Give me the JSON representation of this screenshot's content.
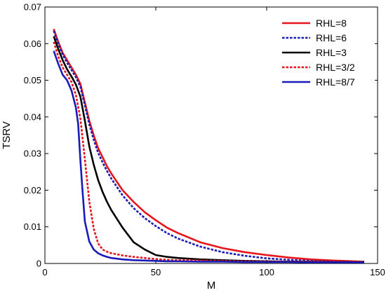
{
  "chart_data": {
    "type": "line",
    "xlabel": "M",
    "ylabel": "TSRV",
    "xlim": [
      0,
      150
    ],
    "ylim": [
      0,
      0.07
    ],
    "xticks": [
      0,
      50,
      100,
      150
    ],
    "yticks": [
      0,
      0.01,
      0.02,
      0.03,
      0.04,
      0.05,
      0.06,
      0.07
    ],
    "xtick_labels": [
      "0",
      "50",
      "100",
      "150"
    ],
    "ytick_labels": [
      "0",
      "0.01",
      "0.02",
      "0.03",
      "0.04",
      "0.05",
      "0.06",
      "0.07"
    ],
    "grid": false,
    "legend_position": "top-right",
    "series": [
      {
        "name": "RHL=8",
        "color": "#e8141b",
        "dash": "solid",
        "x": [
          4,
          6,
          8,
          10,
          12,
          14,
          16,
          18,
          20,
          22,
          24,
          26,
          28,
          30,
          35,
          40,
          45,
          50,
          55,
          60,
          70,
          80,
          90,
          100,
          110,
          120,
          130,
          144
        ],
        "y": [
          0.064,
          0.0605,
          0.0575,
          0.0555,
          0.0535,
          0.0515,
          0.049,
          0.044,
          0.039,
          0.035,
          0.0315,
          0.029,
          0.0265,
          0.0245,
          0.02,
          0.0168,
          0.014,
          0.0118,
          0.0098,
          0.0083,
          0.0058,
          0.0042,
          0.0031,
          0.0023,
          0.0016,
          0.0011,
          0.0008,
          0.0005
        ]
      },
      {
        "name": "RHL=6",
        "color": "#1a1ab8",
        "dash": "dotted",
        "x": [
          4,
          6,
          8,
          10,
          12,
          14,
          16,
          18,
          20,
          22,
          24,
          26,
          28,
          30,
          35,
          40,
          45,
          50,
          55,
          60,
          70,
          80,
          90,
          100,
          110,
          120,
          130,
          144
        ],
        "y": [
          0.0635,
          0.06,
          0.057,
          0.0548,
          0.0528,
          0.0508,
          0.0482,
          0.0432,
          0.038,
          0.0338,
          0.0302,
          0.0276,
          0.0252,
          0.0231,
          0.0186,
          0.0151,
          0.0124,
          0.0102,
          0.0083,
          0.0068,
          0.0046,
          0.0031,
          0.0021,
          0.0014,
          0.001,
          0.0007,
          0.0005,
          0.0004
        ]
      },
      {
        "name": "RHL=3",
        "color": "#000000",
        "dash": "solid",
        "x": [
          4,
          6,
          8,
          10,
          12,
          14,
          16,
          18,
          20,
          22,
          24,
          26,
          28,
          30,
          35,
          40,
          45,
          50,
          55,
          60,
          70,
          80,
          90,
          100,
          110,
          120,
          130,
          144
        ],
        "y": [
          0.062,
          0.0585,
          0.0555,
          0.053,
          0.051,
          0.0488,
          0.0455,
          0.039,
          0.032,
          0.027,
          0.0228,
          0.0195,
          0.0168,
          0.0145,
          0.0098,
          0.0058,
          0.0038,
          0.0023,
          0.0018,
          0.0015,
          0.0011,
          0.0009,
          0.0007,
          0.0006,
          0.0005,
          0.0005,
          0.0004,
          0.0004
        ]
      },
      {
        "name": "RHL=3/2",
        "color": "#e8141b",
        "dash": "dotted",
        "x": [
          4,
          6,
          8,
          10,
          12,
          14,
          16,
          18,
          20,
          22,
          24,
          26,
          28,
          30,
          35,
          40,
          45,
          50,
          55,
          60,
          70,
          80,
          90,
          100,
          110,
          120,
          130,
          144
        ],
        "y": [
          0.0605,
          0.0565,
          0.0535,
          0.0515,
          0.0495,
          0.046,
          0.0395,
          0.0285,
          0.017,
          0.0095,
          0.0055,
          0.0038,
          0.0032,
          0.0028,
          0.0022,
          0.0018,
          0.0015,
          0.0012,
          0.001,
          0.0009,
          0.0008,
          0.0007,
          0.0006,
          0.0005,
          0.0005,
          0.0005,
          0.0004,
          0.0004
        ]
      },
      {
        "name": "RHL=8/7",
        "color": "#1a1ab8",
        "dash": "solid",
        "x": [
          4,
          6,
          8,
          10,
          12,
          14,
          15,
          16,
          17,
          18,
          20,
          22,
          24,
          26,
          28,
          30,
          35,
          40,
          45,
          50,
          55,
          60,
          70,
          80,
          90,
          100,
          110,
          120,
          130,
          144
        ],
        "y": [
          0.058,
          0.0545,
          0.0515,
          0.05,
          0.0472,
          0.0425,
          0.038,
          0.028,
          0.0195,
          0.0115,
          0.006,
          0.0038,
          0.0028,
          0.0022,
          0.0018,
          0.0015,
          0.0011,
          0.0009,
          0.0008,
          0.0007,
          0.0006,
          0.0006,
          0.0005,
          0.0005,
          0.0004,
          0.0004,
          0.0004,
          0.0003,
          0.0003,
          0.0003
        ]
      }
    ]
  }
}
